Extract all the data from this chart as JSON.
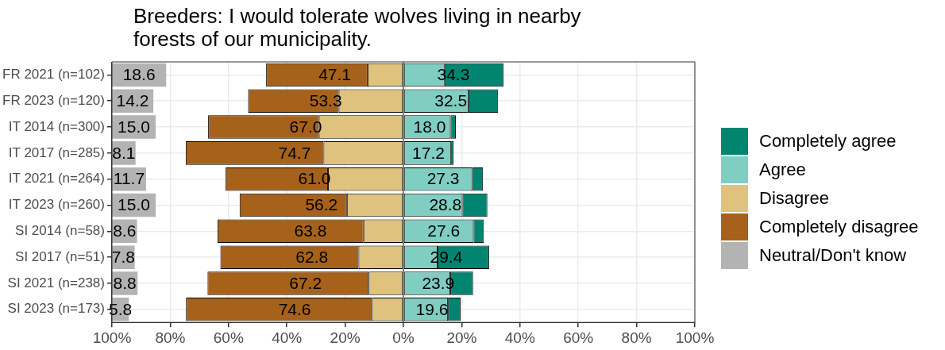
{
  "chart_data": {
    "type": "bar",
    "orientation": "horizontal",
    "title": "Breeders: I would tolerate wolves living in nearby forests of our municipality.",
    "categories": [
      "FR 2021 (n=102)",
      "FR 2023 (n=120)",
      "IT 2014 (n=300)",
      "IT 2017 (n=285)",
      "IT 2021 (n=264)",
      "IT 2023 (n=260)",
      "SI 2014 (n=58)",
      "SI 2017 (n=51)",
      "SI 2021 (n=238)",
      "SI 2023 (n=173)"
    ],
    "series": [
      {
        "name": "Completely agree",
        "color": "#018571",
        "base": [
          14.1,
          22.3,
          16.2,
          16.4,
          23.6,
          20.3,
          24.1,
          11.7,
          16.1,
          15.3
        ],
        "values": [
          20.2,
          10.2,
          1.8,
          0.8,
          3.7,
          8.5,
          3.5,
          17.7,
          7.8,
          4.3
        ]
      },
      {
        "name": "Agree",
        "color": "#80cdc1",
        "base": [
          0,
          0,
          0,
          0,
          0,
          0,
          0,
          0,
          0,
          0
        ],
        "values": [
          14.1,
          22.3,
          16.2,
          16.4,
          23.6,
          20.3,
          24.1,
          11.7,
          16.1,
          15.3
        ]
      },
      {
        "name": "Disagree",
        "color": "#dfc27d",
        "base": [
          0,
          0,
          0,
          0,
          0,
          0,
          0,
          0,
          0,
          0
        ],
        "values": [
          -12.3,
          -22.2,
          -29.0,
          -27.4,
          -25.9,
          -19.4,
          -13.7,
          -15.4,
          -11.9,
          -10.8
        ]
      },
      {
        "name": "Completely disagree",
        "color": "#a6611a",
        "base": [
          -12.3,
          -22.2,
          -29.0,
          -27.4,
          -25.9,
          -19.4,
          -13.7,
          -15.4,
          -11.9,
          -10.8
        ],
        "values": [
          -34.8,
          -31.1,
          -38.0,
          -47.3,
          -35.1,
          -36.8,
          -50.1,
          -47.4,
          -55.3,
          -63.8
        ]
      },
      {
        "name": "Neutral/Don't know",
        "color": "#b3b3b3",
        "base": [
          -100,
          -100,
          -100,
          -100,
          -100,
          -100,
          -100,
          -100,
          -100,
          -100
        ],
        "values": [
          18.6,
          14.2,
          15.0,
          8.1,
          11.7,
          15.0,
          8.6,
          7.8,
          8.8,
          5.8
        ],
        "value_labels": [
          "18.6",
          "14.2",
          "15.0",
          "8.1",
          "11.7",
          "15.0",
          "8.6",
          "7.8",
          "8.8",
          "5.8"
        ]
      }
    ],
    "annotations": [
      {
        "text": "47.1",
        "x": -23.55,
        "y": "FR 2021 (n=102)"
      },
      {
        "text": "53.3",
        "x": -26.65,
        "y": "FR 2023 (n=120)"
      },
      {
        "text": "67.0",
        "x": -33.5,
        "y": "IT 2014 (n=300)"
      },
      {
        "text": "74.7",
        "x": -37.35,
        "y": "IT 2017 (n=285)"
      },
      {
        "text": "61.0",
        "x": -30.5,
        "y": "IT 2021 (n=264)"
      },
      {
        "text": "56.2",
        "x": -28.1,
        "y": "IT 2023 (n=260)"
      },
      {
        "text": "63.8",
        "x": -31.9,
        "y": "SI 2014 (n=58)"
      },
      {
        "text": "62.8",
        "x": -31.4,
        "y": "SI 2017 (n=51)"
      },
      {
        "text": "67.2",
        "x": -33.6,
        "y": "SI 2021 (n=238)"
      },
      {
        "text": "74.6",
        "x": -37.3,
        "y": "SI 2023 (n=173)"
      },
      {
        "text": "34.3",
        "x": 17.15,
        "y": "FR 2021 (n=102)"
      },
      {
        "text": "32.5",
        "x": 16.25,
        "y": "FR 2023 (n=120)"
      },
      {
        "text": "18.0",
        "x": 9.0,
        "y": "IT 2014 (n=300)"
      },
      {
        "text": "17.2",
        "x": 8.6,
        "y": "IT 2017 (n=285)"
      },
      {
        "text": "27.3",
        "x": 13.65,
        "y": "IT 2021 (n=264)"
      },
      {
        "text": "28.8",
        "x": 14.4,
        "y": "IT 2023 (n=260)"
      },
      {
        "text": "27.6",
        "x": 13.8,
        "y": "SI 2014 (n=58)"
      },
      {
        "text": "29.4",
        "x": 14.7,
        "y": "SI 2017 (n=51)"
      },
      {
        "text": "23.9",
        "x": 11.95,
        "y": "SI 2021 (n=238)"
      },
      {
        "text": "19.6",
        "x": 9.8,
        "y": "SI 2023 (n=173)"
      }
    ],
    "xlim": [
      -100,
      100
    ],
    "xticks": [
      {
        "value": -100,
        "label": "100%"
      },
      {
        "value": -80,
        "label": "80%"
      },
      {
        "value": -60,
        "label": "60%"
      },
      {
        "value": -40,
        "label": "40%"
      },
      {
        "value": -20,
        "label": "20%"
      },
      {
        "value": 0,
        "label": "0%"
      },
      {
        "value": 20,
        "label": "20%"
      },
      {
        "value": 40,
        "label": "40%"
      },
      {
        "value": 60,
        "label": "60%"
      },
      {
        "value": 80,
        "label": "80%"
      },
      {
        "value": 100,
        "label": "100%"
      }
    ],
    "ref_lines": [
      {
        "axis": "x",
        "value": 0,
        "color": "#808080"
      }
    ],
    "grid": true,
    "legend": "right"
  }
}
